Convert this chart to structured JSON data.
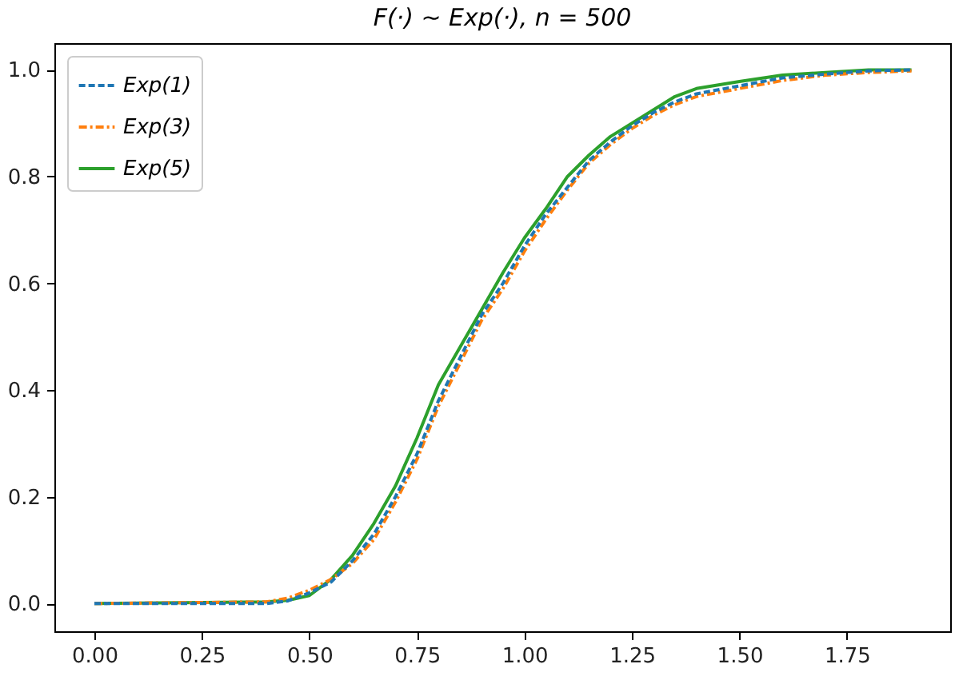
{
  "chart_data": {
    "type": "line",
    "title": "F(·) ~ Exp(·),  n = 500",
    "x": [
      0,
      0.4,
      0.45,
      0.5,
      0.55,
      0.6,
      0.65,
      0.7,
      0.75,
      0.8,
      0.85,
      0.9,
      0.95,
      1.0,
      1.05,
      1.1,
      1.15,
      1.2,
      1.25,
      1.3,
      1.35,
      1.4,
      1.5,
      1.6,
      1.7,
      1.8,
      1.9
    ],
    "series": [
      {
        "name": "Exp(1)",
        "color": "#1f77b4",
        "line_style": "dashed",
        "values": [
          0,
          0,
          0.005,
          0.02,
          0.04,
          0.08,
          0.13,
          0.2,
          0.28,
          0.38,
          0.46,
          0.54,
          0.6,
          0.67,
          0.73,
          0.78,
          0.83,
          0.865,
          0.895,
          0.92,
          0.94,
          0.955,
          0.97,
          0.985,
          0.992,
          0.998,
          1.0
        ]
      },
      {
        "name": "Exp(3)",
        "color": "#ff7f0e",
        "line_style": "dashdot",
        "values": [
          0,
          0.003,
          0.01,
          0.025,
          0.045,
          0.075,
          0.12,
          0.19,
          0.27,
          0.37,
          0.45,
          0.53,
          0.59,
          0.66,
          0.72,
          0.775,
          0.825,
          0.86,
          0.89,
          0.915,
          0.935,
          0.95,
          0.965,
          0.98,
          0.99,
          0.995,
          0.998
        ]
      },
      {
        "name": "Exp(5)",
        "color": "#2ca02c",
        "line_style": "solid",
        "values": [
          0,
          0.003,
          0.006,
          0.015,
          0.045,
          0.09,
          0.15,
          0.22,
          0.31,
          0.41,
          0.48,
          0.55,
          0.62,
          0.685,
          0.74,
          0.8,
          0.84,
          0.875,
          0.9,
          0.925,
          0.95,
          0.965,
          0.978,
          0.99,
          0.995,
          1.0,
          1.0
        ]
      }
    ],
    "xlim": [
      -0.093,
      1.99
    ],
    "ylim": [
      -0.052,
      1.05
    ],
    "xticks": [
      {
        "value": 0,
        "label": "0.00"
      },
      {
        "value": 0.25,
        "label": "0.25"
      },
      {
        "value": 0.5,
        "label": "0.50"
      },
      {
        "value": 0.75,
        "label": "0.75"
      },
      {
        "value": 1,
        "label": "1.00"
      },
      {
        "value": 1.25,
        "label": "1.25"
      },
      {
        "value": 1.5,
        "label": "1.50"
      },
      {
        "value": 1.75,
        "label": "1.75"
      }
    ],
    "yticks": [
      {
        "value": 0,
        "label": "0.0"
      },
      {
        "value": 0.2,
        "label": "0.2"
      },
      {
        "value": 0.4,
        "label": "0.4"
      },
      {
        "value": 0.6,
        "label": "0.6"
      },
      {
        "value": 0.8,
        "label": "0.8"
      },
      {
        "value": 1,
        "label": "1.0"
      }
    ],
    "legend": "top left",
    "grid": false
  }
}
